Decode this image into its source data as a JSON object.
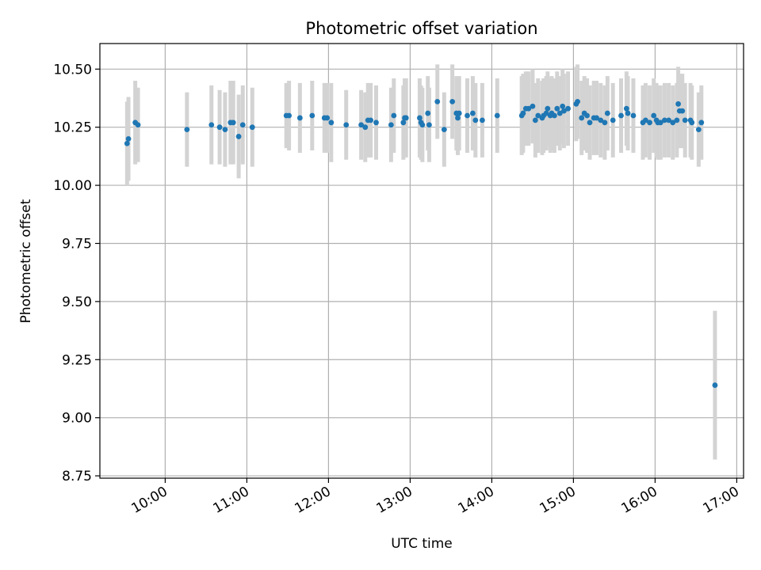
{
  "chart_data": {
    "type": "scatter",
    "title": "Photometric offset variation",
    "xlabel": "UTC time",
    "ylabel": "Photometric offset",
    "grid": true,
    "xlim": [
      "09:12",
      "17:05"
    ],
    "ylim": [
      8.74,
      10.61
    ],
    "x_ticks": [
      "10:00",
      "11:00",
      "12:00",
      "13:00",
      "14:00",
      "15:00",
      "16:00",
      "17:00"
    ],
    "y_ticks": [
      "8.75",
      "9.00",
      "9.25",
      "9.50",
      "9.75",
      "10.00",
      "10.25",
      "10.50"
    ],
    "colors": {
      "marker": "#1f77b4",
      "errorbar": "#d3d3d3",
      "grid": "#b0b0b0",
      "axes": "#000000"
    },
    "series": [
      {
        "x_time": [
          "09:32",
          "09:33",
          "09:38",
          "09:40",
          "10:16",
          "10:34",
          "10:40",
          "10:44",
          "10:48",
          "10:50",
          "10:54",
          "10:57",
          "11:04",
          "11:29",
          "11:31",
          "11:39",
          "11:48",
          "11:57",
          "11:59",
          "12:02",
          "12:13",
          "12:24",
          "12:27",
          "12:29",
          "12:31",
          "12:35",
          "12:46",
          "12:48",
          "12:55",
          "12:56",
          "12:57",
          "13:07",
          "13:08",
          "13:09",
          "13:13",
          "13:14",
          "13:20",
          "13:25",
          "13:31",
          "13:34",
          "13:35",
          "13:36",
          "13:42",
          "13:46",
          "13:48",
          "13:53",
          "14:04",
          "14:22",
          "14:23",
          "14:25",
          "14:27",
          "14:30",
          "14:32",
          "14:34",
          "14:37",
          "14:38",
          "14:40",
          "14:41",
          "14:43",
          "14:44",
          "14:46",
          "14:48",
          "14:50",
          "14:52",
          "14:53",
          "14:56",
          "15:02",
          "15:03",
          "15:06",
          "15:08",
          "15:10",
          "15:12",
          "15:15",
          "15:17",
          "15:20",
          "15:23",
          "15:25",
          "15:29",
          "15:35",
          "15:39",
          "15:40",
          "15:44",
          "15:51",
          "15:53",
          "15:56",
          "15:59",
          "16:01",
          "16:02",
          "16:04",
          "16:07",
          "16:10",
          "16:13",
          "16:16",
          "16:17",
          "16:18",
          "16:20",
          "16:22",
          "16:26",
          "16:27",
          "16:32",
          "16:34",
          "16:44"
        ],
        "y": [
          10.18,
          10.2,
          10.27,
          10.26,
          10.24,
          10.26,
          10.25,
          10.24,
          10.27,
          10.27,
          10.21,
          10.26,
          10.25,
          10.3,
          10.3,
          10.29,
          10.3,
          10.29,
          10.29,
          10.27,
          10.26,
          10.26,
          10.25,
          10.28,
          10.28,
          10.27,
          10.26,
          10.3,
          10.27,
          10.29,
          10.29,
          10.29,
          10.27,
          10.26,
          10.31,
          10.26,
          10.36,
          10.24,
          10.36,
          10.31,
          10.29,
          10.31,
          10.3,
          10.31,
          10.28,
          10.28,
          10.3,
          10.3,
          10.31,
          10.33,
          10.33,
          10.34,
          10.28,
          10.3,
          10.29,
          10.3,
          10.31,
          10.33,
          10.3,
          10.31,
          10.3,
          10.33,
          10.31,
          10.34,
          10.32,
          10.33,
          10.35,
          10.36,
          10.29,
          10.31,
          10.3,
          10.27,
          10.29,
          10.29,
          10.28,
          10.27,
          10.31,
          10.28,
          10.3,
          10.33,
          10.31,
          10.3,
          10.27,
          10.28,
          10.27,
          10.3,
          10.28,
          10.27,
          10.27,
          10.28,
          10.28,
          10.27,
          10.28,
          10.35,
          10.32,
          10.32,
          10.28,
          10.28,
          10.27,
          10.24,
          10.27,
          9.14
        ],
        "yerr": [
          0.18,
          0.18,
          0.18,
          0.16,
          0.16,
          0.17,
          0.16,
          0.16,
          0.18,
          0.18,
          0.18,
          0.17,
          0.17,
          0.14,
          0.15,
          0.15,
          0.15,
          0.15,
          0.15,
          0.17,
          0.15,
          0.15,
          0.15,
          0.16,
          0.16,
          0.16,
          0.16,
          0.16,
          0.16,
          0.17,
          0.17,
          0.17,
          0.16,
          0.16,
          0.16,
          0.16,
          0.16,
          0.16,
          0.16,
          0.16,
          0.16,
          0.16,
          0.16,
          0.16,
          0.16,
          0.16,
          0.16,
          0.17,
          0.17,
          0.16,
          0.16,
          0.16,
          0.16,
          0.16,
          0.16,
          0.16,
          0.16,
          0.16,
          0.16,
          0.16,
          0.16,
          0.16,
          0.16,
          0.16,
          0.16,
          0.16,
          0.16,
          0.16,
          0.16,
          0.16,
          0.16,
          0.16,
          0.16,
          0.16,
          0.16,
          0.16,
          0.16,
          0.16,
          0.16,
          0.16,
          0.16,
          0.16,
          0.16,
          0.16,
          0.16,
          0.16,
          0.16,
          0.16,
          0.16,
          0.16,
          0.16,
          0.16,
          0.16,
          0.16,
          0.16,
          0.16,
          0.16,
          0.16,
          0.16,
          0.16,
          0.16,
          0.32
        ]
      }
    ]
  }
}
